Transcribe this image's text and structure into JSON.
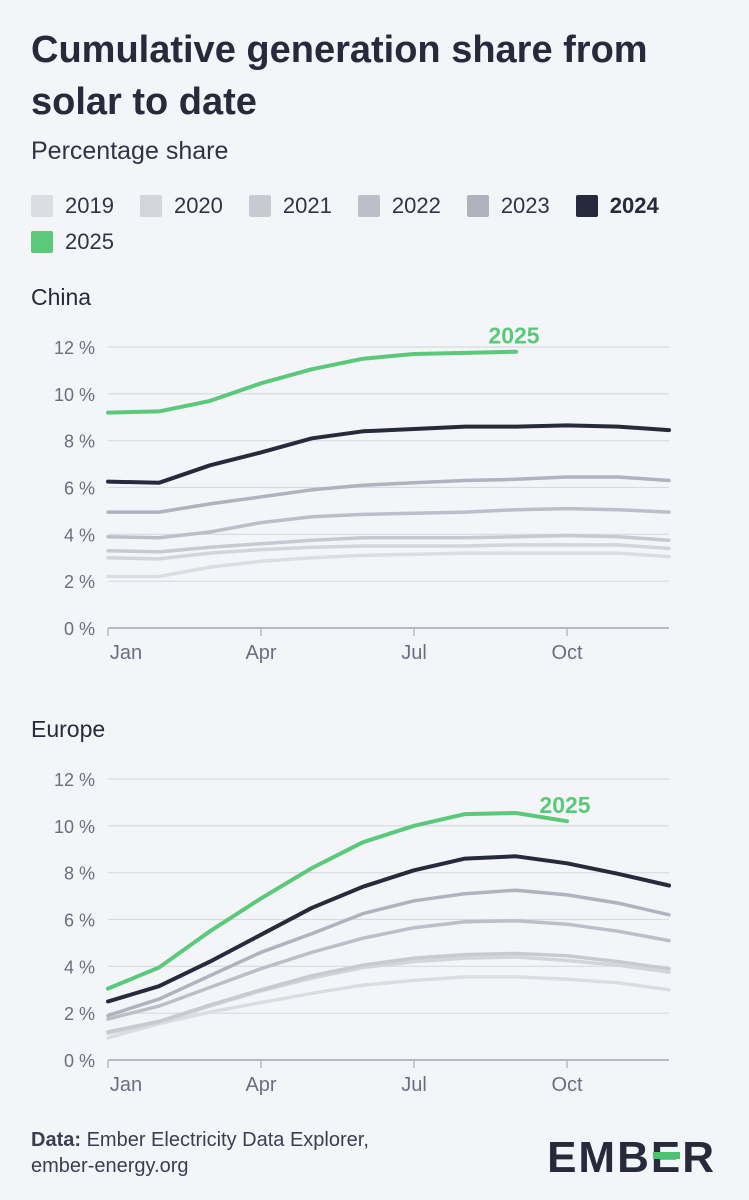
{
  "header": {
    "title": "Cumulative generation share from solar to date",
    "subtitle": "Percentage share"
  },
  "legend": [
    {
      "label": "2019",
      "color": "#dcdde3",
      "bold": false
    },
    {
      "label": "2020",
      "color": "#d3d5dc",
      "bold": false
    },
    {
      "label": "2021",
      "color": "#c8cad2",
      "bold": false
    },
    {
      "label": "2022",
      "color": "#bcbfc8",
      "bold": false
    },
    {
      "label": "2023",
      "color": "#b0b3bd",
      "bold": false
    },
    {
      "label": "2024",
      "color": "#262a3b",
      "bold": true
    },
    {
      "label": "2025",
      "color": "#5bc97a",
      "bold": true
    }
  ],
  "chart_data": [
    {
      "type": "line",
      "title": "China",
      "xlabel": "",
      "ylabel": "",
      "x": [
        "Jan",
        "Feb",
        "Mar",
        "Apr",
        "May",
        "Jun",
        "Jul",
        "Aug",
        "Sep",
        "Oct",
        "Nov",
        "Dec"
      ],
      "x_ticks": [
        "Jan",
        "Apr",
        "Jul",
        "Oct"
      ],
      "y_ticks": [
        "0 %",
        "2 %",
        "4 %",
        "6 %",
        "8 %",
        "10 %",
        "12 %"
      ],
      "ylim": [
        0,
        12
      ],
      "grid": true,
      "end_label": "2025",
      "series": [
        {
          "name": "2019",
          "color": "#dcdde3",
          "values": [
            2.2,
            2.2,
            2.6,
            2.85,
            3.0,
            3.1,
            3.15,
            3.2,
            3.2,
            3.2,
            3.2,
            3.05
          ]
        },
        {
          "name": "2020",
          "color": "#d3d5dc",
          "values": [
            3.0,
            2.95,
            3.2,
            3.35,
            3.45,
            3.5,
            3.5,
            3.5,
            3.55,
            3.55,
            3.55,
            3.4
          ]
        },
        {
          "name": "2021",
          "color": "#c8cad2",
          "values": [
            3.3,
            3.25,
            3.45,
            3.6,
            3.75,
            3.85,
            3.85,
            3.85,
            3.9,
            3.95,
            3.9,
            3.75
          ]
        },
        {
          "name": "2022",
          "color": "#bcbfc8",
          "values": [
            3.9,
            3.85,
            4.1,
            4.5,
            4.75,
            4.85,
            4.9,
            4.95,
            5.05,
            5.1,
            5.05,
            4.95
          ]
        },
        {
          "name": "2023",
          "color": "#b0b3bd",
          "values": [
            4.95,
            4.95,
            5.3,
            5.6,
            5.9,
            6.1,
            6.2,
            6.3,
            6.35,
            6.45,
            6.45,
            6.3
          ]
        },
        {
          "name": "2024",
          "color": "#262a3b",
          "values": [
            6.25,
            6.2,
            6.95,
            7.5,
            8.1,
            8.4,
            8.5,
            8.6,
            8.6,
            8.65,
            8.6,
            8.45
          ]
        },
        {
          "name": "2025",
          "color": "#5bc97a",
          "values": [
            9.2,
            9.25,
            9.7,
            10.45,
            11.05,
            11.5,
            11.7,
            11.75,
            11.8,
            null,
            null,
            null
          ]
        }
      ]
    },
    {
      "type": "line",
      "title": "Europe",
      "xlabel": "",
      "ylabel": "",
      "x": [
        "Jan",
        "Feb",
        "Mar",
        "Apr",
        "May",
        "Jun",
        "Jul",
        "Aug",
        "Sep",
        "Oct",
        "Nov",
        "Dec"
      ],
      "x_ticks": [
        "Jan",
        "Apr",
        "Jul",
        "Oct"
      ],
      "y_ticks": [
        "0 %",
        "2 %",
        "4 %",
        "6 %",
        "8 %",
        "10 %",
        "12 %"
      ],
      "ylim": [
        0,
        12
      ],
      "grid": true,
      "end_label": "2025",
      "series": [
        {
          "name": "2019",
          "color": "#dcdde3",
          "values": [
            0.95,
            1.55,
            2.05,
            2.45,
            2.85,
            3.2,
            3.4,
            3.55,
            3.55,
            3.45,
            3.3,
            3.0
          ]
        },
        {
          "name": "2020",
          "color": "#d3d5dc",
          "values": [
            1.15,
            1.6,
            2.3,
            2.95,
            3.5,
            3.95,
            4.2,
            4.35,
            4.4,
            4.25,
            4.05,
            3.75
          ]
        },
        {
          "name": "2021",
          "color": "#c8cad2",
          "values": [
            1.2,
            1.65,
            2.35,
            3.0,
            3.6,
            4.05,
            4.35,
            4.5,
            4.55,
            4.45,
            4.2,
            3.9
          ]
        },
        {
          "name": "2022",
          "color": "#bcbfc8",
          "values": [
            1.75,
            2.3,
            3.1,
            3.9,
            4.6,
            5.2,
            5.65,
            5.9,
            5.95,
            5.8,
            5.5,
            5.1
          ]
        },
        {
          "name": "2023",
          "color": "#b0b3bd",
          "values": [
            1.9,
            2.6,
            3.6,
            4.6,
            5.4,
            6.25,
            6.8,
            7.1,
            7.25,
            7.05,
            6.7,
            6.2
          ]
        },
        {
          "name": "2024",
          "color": "#262a3b",
          "values": [
            2.5,
            3.15,
            4.2,
            5.35,
            6.5,
            7.4,
            8.1,
            8.6,
            8.7,
            8.4,
            7.95,
            7.45
          ]
        },
        {
          "name": "2025",
          "color": "#5bc97a",
          "values": [
            3.05,
            3.95,
            5.5,
            6.9,
            8.2,
            9.3,
            10.0,
            10.5,
            10.55,
            10.2,
            null,
            null
          ]
        }
      ]
    }
  ],
  "footer": {
    "data_label": "Data:",
    "source_line1": " Ember Electricity Data Explorer,",
    "source_line2": "ember-energy.org"
  },
  "logo": {
    "text_a": "EMB",
    "text_b": "E",
    "text_c": "R",
    "accent_color": "#4fc26f"
  }
}
